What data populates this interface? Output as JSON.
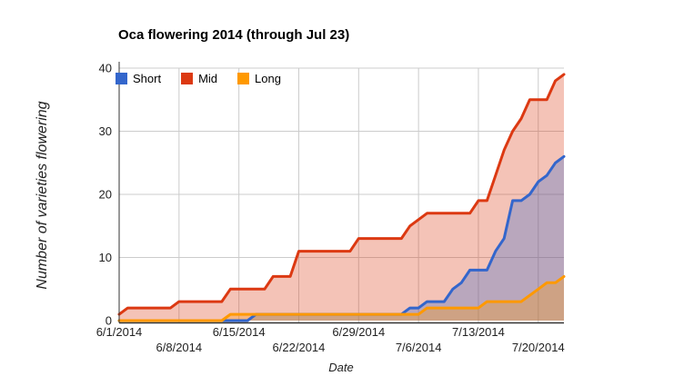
{
  "title": "Oca flowering 2014 (through Jul 23)",
  "legend": {
    "items": [
      {
        "label": "Short",
        "color": "#3366cc"
      },
      {
        "label": "Mid",
        "color": "#dc3912"
      },
      {
        "label": "Long",
        "color": "#ff9900"
      }
    ]
  },
  "y_axis": {
    "title": "Number of varieties flowering",
    "ticks": [
      0,
      10,
      20,
      30,
      40
    ]
  },
  "x_axis": {
    "title": "Date",
    "ticks": [
      "6/1/2014",
      "6/8/2014",
      "6/15/2014",
      "6/22/2014",
      "6/29/2014",
      "7/6/2014",
      "7/13/2014",
      "7/20/2014"
    ]
  },
  "chart_data": {
    "type": "area",
    "title": "Oca flowering 2014 (through Jul 23)",
    "xlabel": "Date",
    "ylabel": "Number of varieties flowering",
    "ylim": [
      0,
      40
    ],
    "grid": true,
    "legend_position": "top-left",
    "area_opacity": 0.3,
    "line_width": 3,
    "grid_color": "#cccccc",
    "axis_color": "#333333",
    "x": [
      "6/1/2014",
      "6/2/2014",
      "6/3/2014",
      "6/4/2014",
      "6/5/2014",
      "6/6/2014",
      "6/7/2014",
      "6/8/2014",
      "6/9/2014",
      "6/10/2014",
      "6/11/2014",
      "6/12/2014",
      "6/13/2014",
      "6/14/2014",
      "6/15/2014",
      "6/16/2014",
      "6/17/2014",
      "6/18/2014",
      "6/19/2014",
      "6/20/2014",
      "6/21/2014",
      "6/22/2014",
      "6/23/2014",
      "6/24/2014",
      "6/25/2014",
      "6/26/2014",
      "6/27/2014",
      "6/28/2014",
      "6/29/2014",
      "6/30/2014",
      "7/1/2014",
      "7/2/2014",
      "7/3/2014",
      "7/4/2014",
      "7/5/2014",
      "7/6/2014",
      "7/7/2014",
      "7/8/2014",
      "7/9/2014",
      "7/10/2014",
      "7/11/2014",
      "7/12/2014",
      "7/13/2014",
      "7/14/2014",
      "7/15/2014",
      "7/16/2014",
      "7/17/2014",
      "7/18/2014",
      "7/19/2014",
      "7/20/2014",
      "7/21/2014",
      "7/22/2014",
      "7/23/2014"
    ],
    "x_tick_labels": [
      "6/1/2014",
      "6/8/2014",
      "6/15/2014",
      "6/22/2014",
      "6/29/2014",
      "7/6/2014",
      "7/13/2014",
      "7/20/2014"
    ],
    "series": [
      {
        "name": "Mid",
        "color": "#dc3912",
        "values": [
          1,
          2,
          2,
          2,
          2,
          2,
          2,
          3,
          3,
          3,
          3,
          3,
          3,
          5,
          5,
          5,
          5,
          5,
          7,
          7,
          7,
          11,
          11,
          11,
          11,
          11,
          11,
          11,
          13,
          13,
          13,
          13,
          13,
          13,
          15,
          16,
          17,
          17,
          17,
          17,
          17,
          17,
          19,
          19,
          23,
          27,
          30,
          32,
          35,
          35,
          35,
          38,
          39
        ]
      },
      {
        "name": "Short",
        "color": "#3366cc",
        "values": [
          0,
          0,
          0,
          0,
          0,
          0,
          0,
          0,
          0,
          0,
          0,
          0,
          0,
          0,
          0,
          0,
          1,
          1,
          1,
          1,
          1,
          1,
          1,
          1,
          1,
          1,
          1,
          1,
          1,
          1,
          1,
          1,
          1,
          1,
          2,
          2,
          3,
          3,
          3,
          5,
          6,
          8,
          8,
          8,
          11,
          13,
          19,
          19,
          20,
          22,
          23,
          25,
          26
        ]
      },
      {
        "name": "Long",
        "color": "#ff9900",
        "values": [
          0,
          0,
          0,
          0,
          0,
          0,
          0,
          0,
          0,
          0,
          0,
          0,
          0,
          1,
          1,
          1,
          1,
          1,
          1,
          1,
          1,
          1,
          1,
          1,
          1,
          1,
          1,
          1,
          1,
          1,
          1,
          1,
          1,
          1,
          1,
          1,
          2,
          2,
          2,
          2,
          2,
          2,
          2,
          3,
          3,
          3,
          3,
          3,
          4,
          5,
          6,
          6,
          7
        ]
      }
    ]
  }
}
